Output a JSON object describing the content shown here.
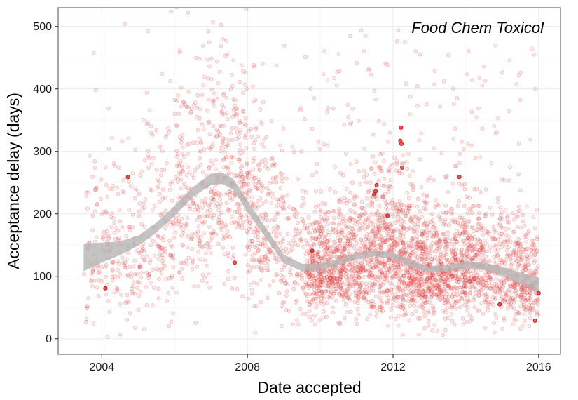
{
  "chart_data": {
    "type": "scatter",
    "title": "",
    "annotation": "Food Chem Toxicol",
    "xlabel": "Date accepted",
    "ylabel": "Acceptance delay (days)",
    "xlim": [
      2002.8,
      2016.6
    ],
    "ylim": [
      -25,
      530
    ],
    "x_ticks": [
      {
        "value": 2004,
        "label": "2004"
      },
      {
        "value": 2008,
        "label": "2008"
      },
      {
        "value": 2012,
        "label": "2012"
      },
      {
        "value": 2016,
        "label": "2016"
      }
    ],
    "y_ticks": [
      {
        "value": 0,
        "label": "0"
      },
      {
        "value": 100,
        "label": "100"
      },
      {
        "value": 200,
        "label": "200"
      },
      {
        "value": 300,
        "label": "300"
      },
      {
        "value": 400,
        "label": "400"
      },
      {
        "value": 500,
        "label": "500"
      }
    ],
    "grid": true,
    "point_color": "#e31a1c",
    "smooth_color": "#b3b3b3",
    "smooth": {
      "x": [
        2003.5,
        2004.0,
        2004.5,
        2005.0,
        2005.5,
        2006.0,
        2006.5,
        2007.0,
        2007.3,
        2007.6,
        2008.0,
        2008.5,
        2009.0,
        2009.5,
        2010.0,
        2010.5,
        2011.0,
        2011.5,
        2012.0,
        2012.5,
        2013.0,
        2013.5,
        2014.0,
        2014.5,
        2015.0,
        2015.5,
        2016.0
      ],
      "y": [
        130,
        138,
        145,
        157,
        178,
        205,
        235,
        255,
        257,
        248,
        212,
        170,
        128,
        114,
        115,
        123,
        132,
        137,
        133,
        120,
        111,
        113,
        118,
        116,
        108,
        97,
        86
      ],
      "band": [
        22,
        16,
        11,
        8,
        8,
        8,
        8,
        9,
        9,
        9,
        9,
        8,
        7,
        6,
        5,
        5,
        5,
        5,
        5,
        5,
        5,
        5,
        6,
        6,
        7,
        9,
        12
      ]
    },
    "highlighted_points": [
      {
        "x": 2012.22,
        "y": 338
      },
      {
        "x": 2012.2,
        "y": 317
      },
      {
        "x": 2012.23,
        "y": 312
      },
      {
        "x": 2012.25,
        "y": 274
      },
      {
        "x": 2013.82,
        "y": 259
      },
      {
        "x": 2011.55,
        "y": 246
      },
      {
        "x": 2011.52,
        "y": 236
      },
      {
        "x": 2011.48,
        "y": 231
      },
      {
        "x": 2011.85,
        "y": 197
      },
      {
        "x": 2004.72,
        "y": 259
      },
      {
        "x": 2009.78,
        "y": 141
      },
      {
        "x": 2004.1,
        "y": 81
      },
      {
        "x": 2014.93,
        "y": 55
      },
      {
        "x": 2015.9,
        "y": 29
      },
      {
        "x": 2016.0,
        "y": 73
      },
      {
        "x": 2007.65,
        "y": 122
      }
    ],
    "density_bins": [
      {
        "x0": 2003.5,
        "x1": 2004.0,
        "n": 60,
        "median": 120,
        "spread": 95
      },
      {
        "x0": 2004.0,
        "x1": 2005.0,
        "n": 140,
        "median": 130,
        "spread": 90
      },
      {
        "x0": 2005.0,
        "x1": 2006.0,
        "n": 170,
        "median": 150,
        "spread": 95
      },
      {
        "x0": 2006.0,
        "x1": 2007.0,
        "n": 240,
        "median": 215,
        "spread": 110
      },
      {
        "x0": 2007.0,
        "x1": 2008.0,
        "n": 280,
        "median": 240,
        "spread": 110
      },
      {
        "x0": 2008.0,
        "x1": 2009.0,
        "n": 260,
        "median": 165,
        "spread": 100
      },
      {
        "x0": 2009.0,
        "x1": 2009.6,
        "n": 90,
        "median": 120,
        "spread": 80
      },
      {
        "x0": 2009.6,
        "x1": 2010.5,
        "n": 420,
        "median": 105,
        "spread": 55
      },
      {
        "x0": 2010.5,
        "x1": 2011.5,
        "n": 470,
        "median": 115,
        "spread": 65
      },
      {
        "x0": 2011.5,
        "x1": 2012.5,
        "n": 520,
        "median": 120,
        "spread": 70
      },
      {
        "x0": 2012.5,
        "x1": 2013.5,
        "n": 520,
        "median": 100,
        "spread": 60
      },
      {
        "x0": 2013.5,
        "x1": 2014.5,
        "n": 440,
        "median": 105,
        "spread": 60
      },
      {
        "x0": 2014.5,
        "x1": 2015.5,
        "n": 320,
        "median": 100,
        "spread": 60
      },
      {
        "x0": 2015.5,
        "x1": 2016.0,
        "n": 180,
        "median": 85,
        "spread": 50
      }
    ]
  }
}
